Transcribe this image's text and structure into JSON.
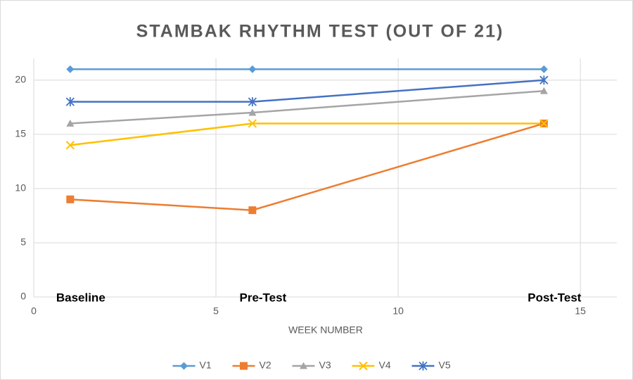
{
  "chart_data": {
    "type": "line",
    "title": "STAMBAK RHYTHM TEST (OUT OF 21)",
    "x_label": "WEEK NUMBER",
    "x": [
      1,
      6,
      14
    ],
    "annotations": [
      "Baseline",
      "Pre-Test",
      "Post-Test"
    ],
    "series": [
      {
        "name": "V1",
        "color": "#5b9bd5",
        "marker": "diamond",
        "values": [
          21,
          21,
          21
        ]
      },
      {
        "name": "V2",
        "color": "#ed7d31",
        "marker": "square",
        "values": [
          9,
          8,
          16
        ]
      },
      {
        "name": "V3",
        "color": "#a5a5a5",
        "marker": "triangle",
        "values": [
          16,
          17,
          19
        ]
      },
      {
        "name": "V4",
        "color": "#ffc000",
        "marker": "x",
        "values": [
          14,
          16,
          16
        ]
      },
      {
        "name": "V5",
        "color": "#4472c4",
        "marker": "star",
        "values": [
          18,
          18,
          20
        ]
      }
    ],
    "xlim": [
      0,
      16
    ],
    "xticks": [
      0,
      5,
      10,
      15
    ],
    "ylim": [
      0,
      22
    ],
    "yticks": [
      0,
      5,
      10,
      15,
      20
    ],
    "grid": true,
    "legend": "bottom"
  }
}
